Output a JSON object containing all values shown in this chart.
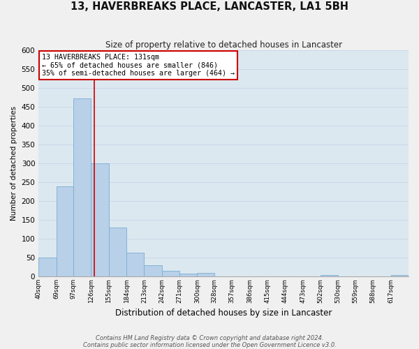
{
  "title": "13, HAVERBREAKS PLACE, LANCASTER, LA1 5BH",
  "subtitle": "Size of property relative to detached houses in Lancaster",
  "xlabel": "Distribution of detached houses by size in Lancaster",
  "ylabel": "Number of detached properties",
  "bar_edges": [
    40,
    69,
    97,
    126,
    155,
    184,
    213,
    242,
    271,
    300,
    328,
    357,
    386,
    415,
    444,
    473,
    502,
    530,
    559,
    588,
    617
  ],
  "bar_heights": [
    50,
    238,
    471,
    300,
    130,
    62,
    29,
    15,
    7,
    10,
    0,
    0,
    0,
    0,
    0,
    0,
    3,
    0,
    0,
    0,
    4
  ],
  "bar_color": "#b8d0e8",
  "bar_edge_color": "#7aadd4",
  "grid_color": "#c8d8e8",
  "vline_x": 131,
  "vline_color": "#cc0000",
  "ylim": [
    0,
    600
  ],
  "yticks": [
    0,
    50,
    100,
    150,
    200,
    250,
    300,
    350,
    400,
    450,
    500,
    550,
    600
  ],
  "xtick_labels": [
    "40sqm",
    "69sqm",
    "97sqm",
    "126sqm",
    "155sqm",
    "184sqm",
    "213sqm",
    "242sqm",
    "271sqm",
    "300sqm",
    "328sqm",
    "357sqm",
    "386sqm",
    "415sqm",
    "444sqm",
    "473sqm",
    "502sqm",
    "530sqm",
    "559sqm",
    "588sqm",
    "617sqm"
  ],
  "annotation_line1": "13 HAVERBREAKS PLACE: 131sqm",
  "annotation_line2": "← 65% of detached houses are smaller (846)",
  "annotation_line3": "35% of semi-detached houses are larger (464) →",
  "annotation_box_color": "#ffffff",
  "annotation_box_edge": "#cc0000",
  "footnote1": "Contains HM Land Registry data © Crown copyright and database right 2024.",
  "footnote2": "Contains public sector information licensed under the Open Government Licence v3.0.",
  "fig_bg_color": "#f0f0f0",
  "ax_bg_color": "#dce8f0"
}
